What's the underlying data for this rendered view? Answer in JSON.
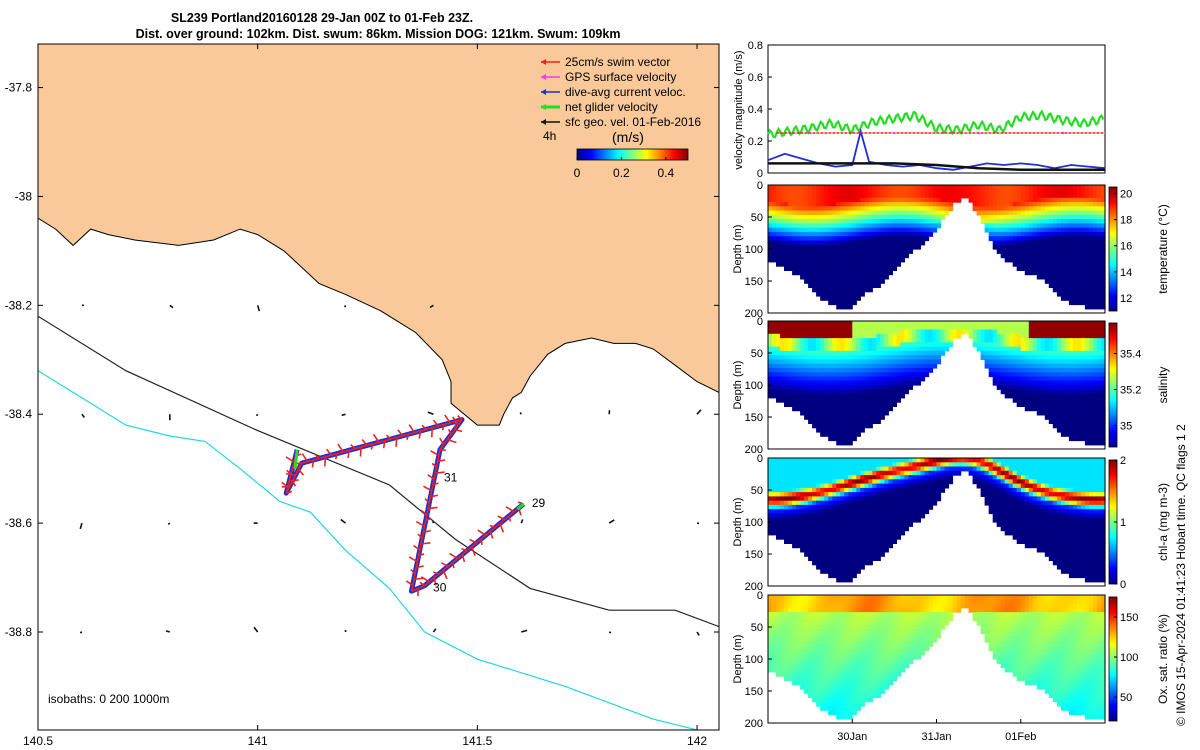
{
  "header": {
    "title_line1": "SL239 Portland20160128 29-Jan 00Z to 01-Feb 23Z.",
    "title_line2": "Dist. over ground: 102km. Dist. swum: 86km. Mission DOG: 121km. Swum: 109km"
  },
  "credit": "© IMOS 15-Apr-2024 01:41:23 Hobart time. QC flags 1  2",
  "colors": {
    "land": "#f9c99a",
    "swim": "#e8241c",
    "gps": "#ff33ff",
    "current": "#1f2ed6",
    "net": "#22dd22",
    "geo": "#111111",
    "isobath_200": "#222222",
    "isobath_1000": "#22d5e5"
  },
  "chart_data": [
    {
      "id": "map",
      "type": "scatter",
      "xlim": [
        140.5,
        142.05
      ],
      "ylim": [
        -38.98,
        -37.72
      ],
      "xticks": [
        "140.5",
        "141",
        "141.5",
        "142"
      ],
      "xtick_values": [
        140.5,
        141,
        141.5,
        142
      ],
      "yticks": [
        "-37.8",
        "-38",
        "-38.2",
        "-38.4",
        "-38.6",
        "-38.8"
      ],
      "ytick_values": [
        -37.8,
        -38,
        -38.2,
        -38.4,
        -38.6,
        -38.8
      ],
      "legend": {
        "placement": "top-right",
        "items": [
          {
            "label": "25cm/s swim vector",
            "color_key": "swim"
          },
          {
            "label": "GPS surface velocity",
            "color_key": "gps"
          },
          {
            "label": "dive-avg current veloc.",
            "color_key": "current"
          },
          {
            "label": "net glider velocity",
            "color_key": "net"
          },
          {
            "label": "sfc geo. vel. 01-Feb-2016",
            "color_key": "geo"
          }
        ]
      },
      "legend_note": "4h",
      "colorbar": {
        "label": "(m/s)",
        "ticks": [
          "0",
          "0.2",
          "0.4"
        ],
        "tick_values": [
          0,
          0.2,
          0.4
        ],
        "range": [
          0,
          0.5
        ]
      },
      "isobath_label": "isobaths: 0   200  1000m",
      "day_labels": [
        {
          "text": "29",
          "lon": 141.615,
          "lat": -38.563
        },
        {
          "text": "30",
          "lon": 141.39,
          "lat": -38.718
        },
        {
          "text": "31",
          "lon": 141.415,
          "lat": -38.516
        }
      ],
      "track": [
        {
          "lon": 141.605,
          "lat": -38.565
        },
        {
          "lon": 141.38,
          "lat": -38.715
        },
        {
          "lon": 141.35,
          "lat": -38.725
        },
        {
          "lon": 141.415,
          "lat": -38.465
        },
        {
          "lon": 141.465,
          "lat": -38.41
        },
        {
          "lon": 141.1,
          "lat": -38.49
        },
        {
          "lon": 141.065,
          "lat": -38.545
        },
        {
          "lon": 141.09,
          "lat": -38.465
        }
      ],
      "coastline": [
        [
          140.5,
          -38.04
        ],
        [
          140.54,
          -38.06
        ],
        [
          140.58,
          -38.09
        ],
        [
          140.62,
          -38.06
        ],
        [
          140.66,
          -38.07
        ],
        [
          140.72,
          -38.08
        ],
        [
          140.82,
          -38.09
        ],
        [
          140.9,
          -38.08
        ],
        [
          140.96,
          -38.06
        ],
        [
          141.0,
          -38.07
        ],
        [
          141.06,
          -38.1
        ],
        [
          141.1,
          -38.13
        ],
        [
          141.14,
          -38.16
        ],
        [
          141.2,
          -38.18
        ],
        [
          141.28,
          -38.21
        ],
        [
          141.36,
          -38.25
        ],
        [
          141.42,
          -38.3
        ],
        [
          141.44,
          -38.34
        ],
        [
          141.44,
          -38.38
        ],
        [
          141.5,
          -38.42
        ],
        [
          141.55,
          -38.42
        ],
        [
          141.56,
          -38.4
        ],
        [
          141.58,
          -38.37
        ],
        [
          141.6,
          -38.36
        ],
        [
          141.62,
          -38.33
        ],
        [
          141.64,
          -38.31
        ],
        [
          141.66,
          -38.29
        ],
        [
          141.7,
          -38.27
        ],
        [
          141.76,
          -38.26
        ],
        [
          141.81,
          -38.27
        ],
        [
          141.86,
          -38.27
        ],
        [
          141.9,
          -38.28
        ],
        [
          141.95,
          -38.31
        ],
        [
          142.0,
          -38.34
        ],
        [
          142.05,
          -38.36
        ]
      ],
      "isobath_200": [
        [
          140.5,
          -38.22
        ],
        [
          140.7,
          -38.32
        ],
        [
          141.0,
          -38.43
        ],
        [
          141.3,
          -38.53
        ],
        [
          141.45,
          -38.63
        ],
        [
          141.62,
          -38.72
        ],
        [
          141.8,
          -38.76
        ],
        [
          141.95,
          -38.76
        ],
        [
          142.05,
          -38.79
        ]
      ],
      "isobath_1000": [
        [
          140.5,
          -38.32
        ],
        [
          140.62,
          -38.38
        ],
        [
          140.7,
          -38.42
        ],
        [
          140.8,
          -38.44
        ],
        [
          140.88,
          -38.45
        ],
        [
          140.96,
          -38.5
        ],
        [
          141.02,
          -38.54
        ],
        [
          141.05,
          -38.56
        ],
        [
          141.12,
          -38.58
        ],
        [
          141.2,
          -38.65
        ],
        [
          141.3,
          -38.72
        ],
        [
          141.38,
          -38.8
        ],
        [
          141.5,
          -38.85
        ],
        [
          141.7,
          -38.9
        ],
        [
          141.9,
          -38.96
        ],
        [
          142.05,
          -38.99
        ]
      ]
    },
    {
      "id": "velocity",
      "type": "line",
      "ylabel": "velocity magnitude (m/s)",
      "ylim": [
        0,
        0.8
      ],
      "yticks": [
        "0",
        "0.2",
        "0.4",
        "0.6",
        "0.8"
      ],
      "ytick_values": [
        0,
        0.2,
        0.4,
        0.6,
        0.8
      ],
      "xlim": [
        0,
        4
      ],
      "series": [
        {
          "name": "net glider velocity",
          "color_key": "net",
          "x": [
            0,
            0.25,
            0.5,
            0.75,
            1.0,
            1.25,
            1.5,
            1.75,
            2.0,
            2.25,
            2.5,
            2.75,
            3.0,
            3.25,
            3.5,
            3.75,
            4.0
          ],
          "y": [
            0.24,
            0.26,
            0.28,
            0.31,
            0.27,
            0.32,
            0.34,
            0.36,
            0.28,
            0.27,
            0.3,
            0.27,
            0.35,
            0.36,
            0.33,
            0.31,
            0.34
          ]
        },
        {
          "name": "dive-avg current veloc.",
          "color_key": "current",
          "x": [
            0,
            0.2,
            0.4,
            0.6,
            0.8,
            1.0,
            1.1,
            1.2,
            1.4,
            1.6,
            1.8,
            2.0,
            2.2,
            2.4,
            2.6,
            2.8,
            3.0,
            3.2,
            3.4,
            3.6,
            3.8,
            4.0
          ],
          "y": [
            0.08,
            0.12,
            0.09,
            0.06,
            0.04,
            0.05,
            0.26,
            0.07,
            0.05,
            0.04,
            0.05,
            0.03,
            0.02,
            0.04,
            0.06,
            0.05,
            0.06,
            0.05,
            0.03,
            0.05,
            0.04,
            0.03
          ]
        },
        {
          "name": "sfc geo. vel. 01-Feb-2016",
          "color_key": "geo",
          "x": [
            0,
            0.5,
            1.0,
            1.5,
            2.0,
            2.5,
            3.0,
            3.5,
            4.0
          ],
          "y": [
            0.06,
            0.06,
            0.06,
            0.06,
            0.05,
            0.03,
            0.02,
            0.02,
            0.02
          ]
        },
        {
          "name": "25cm/s swim vector",
          "color_key": "swim",
          "x": [
            0.1,
            4.0
          ],
          "y": [
            0.25,
            0.25
          ]
        }
      ]
    },
    {
      "id": "temperature",
      "type": "heatmap",
      "ylabel": "Depth (m)",
      "cbar_label": "temperature (°C)",
      "ylim": [
        200,
        0
      ],
      "yticks": [
        "0",
        "50",
        "100",
        "150",
        "200"
      ],
      "ytick_values": [
        0,
        50,
        100,
        150,
        200
      ],
      "clim": [
        11,
        20.5
      ],
      "cticks": [
        "12",
        "14",
        "16",
        "18",
        "20"
      ],
      "ctick_values": [
        12,
        14,
        16,
        18,
        20
      ],
      "palette": "jet"
    },
    {
      "id": "salinity",
      "type": "heatmap",
      "ylabel": "Depth (m)",
      "cbar_label": "salinity",
      "ylim": [
        200,
        0
      ],
      "yticks": [
        "0",
        "50",
        "100",
        "150",
        "200"
      ],
      "ytick_values": [
        0,
        50,
        100,
        150,
        200
      ],
      "clim": [
        34.88,
        35.57
      ],
      "cticks": [
        "35",
        "35.2",
        "35.4"
      ],
      "ctick_values": [
        35,
        35.2,
        35.4
      ],
      "palette": "jet"
    },
    {
      "id": "chla",
      "type": "heatmap",
      "ylabel": "Depth (m)",
      "cbar_label": "chl-a (mg m-3)",
      "ylim": [
        200,
        0
      ],
      "yticks": [
        "0",
        "50",
        "100",
        "150",
        "200"
      ],
      "ytick_values": [
        0,
        50,
        100,
        150,
        200
      ],
      "clim": [
        0,
        2
      ],
      "cticks": [
        "0",
        "1",
        "2"
      ],
      "ctick_values": [
        0,
        1,
        2
      ],
      "palette": "jet"
    },
    {
      "id": "oxygen",
      "type": "heatmap",
      "ylabel": "Depth (m)",
      "cbar_label": "Ox. sat. ratio (%)",
      "ylim": [
        200,
        0
      ],
      "yticks": [
        "0",
        "50",
        "100",
        "150",
        "200"
      ],
      "ytick_values": [
        0,
        50,
        100,
        150,
        200
      ],
      "clim": [
        20,
        175
      ],
      "cticks": [
        "50",
        "100",
        "150"
      ],
      "ctick_values": [
        50,
        100,
        150
      ],
      "palette": "jet",
      "xticks": [
        "30Jan",
        "31Jan",
        "01Feb"
      ],
      "xtick_values": [
        1,
        2,
        3
      ],
      "xlim": [
        0,
        4
      ]
    }
  ],
  "profile_shape": {
    "x": [
      0,
      0.2,
      0.45,
      0.6,
      0.8,
      1.0,
      1.2,
      1.4,
      1.6,
      1.8,
      2.0,
      2.2,
      2.35,
      2.5,
      2.7,
      2.9,
      3.1,
      3.3,
      3.5,
      3.75,
      4.0
    ],
    "max_depth": [
      115,
      130,
      150,
      175,
      190,
      190,
      165,
      150,
      120,
      95,
      70,
      30,
      20,
      45,
      100,
      125,
      140,
      150,
      180,
      190,
      190
    ]
  }
}
